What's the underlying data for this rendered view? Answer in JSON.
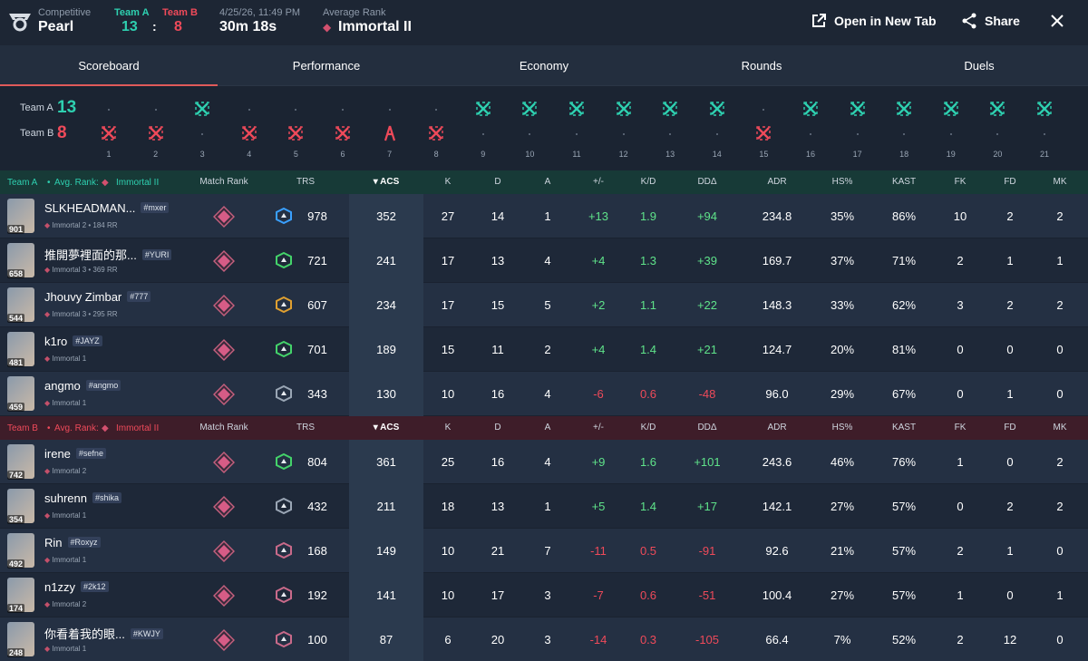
{
  "header": {
    "mode_label": "Competitive",
    "map": "Pearl",
    "team_a_label": "Team A",
    "team_b_label": "Team B",
    "score_a": "13",
    "score_sep": ":",
    "score_b": "8",
    "datetime": "4/25/26, 11:49 PM",
    "duration": "30m 18s",
    "avg_rank_label": "Average Rank",
    "avg_rank": "Immortal II",
    "open_tab": "Open in New Tab",
    "share": "Share"
  },
  "tabs": [
    "Scoreboard",
    "Performance",
    "Economy",
    "Rounds",
    "Duels"
  ],
  "timeline": {
    "team_a_label": "Team A",
    "team_a_score": "13",
    "team_b_label": "Team B",
    "team_b_score": "8",
    "rounds": [
      {
        "n": "1",
        "winner": "b"
      },
      {
        "n": "2",
        "winner": "b"
      },
      {
        "n": "3",
        "winner": "a"
      },
      {
        "n": "4",
        "winner": "b"
      },
      {
        "n": "5",
        "winner": "b"
      },
      {
        "n": "6",
        "winner": "b"
      },
      {
        "n": "7",
        "winner": "b-spike"
      },
      {
        "n": "8",
        "winner": "b"
      },
      {
        "n": "9",
        "winner": "a"
      },
      {
        "n": "10",
        "winner": "a"
      },
      {
        "n": "11",
        "winner": "a"
      },
      {
        "n": "12",
        "winner": "a"
      },
      {
        "n": "13",
        "winner": "a"
      },
      {
        "n": "14",
        "winner": "a"
      },
      {
        "n": "15",
        "winner": "b"
      },
      {
        "n": "16",
        "winner": "a"
      },
      {
        "n": "17",
        "winner": "a"
      },
      {
        "n": "18",
        "winner": "a"
      },
      {
        "n": "19",
        "winner": "a"
      },
      {
        "n": "20",
        "winner": "a"
      },
      {
        "n": "21",
        "winner": "a"
      }
    ]
  },
  "columns": [
    "Match Rank",
    "TRS",
    "ACS",
    "K",
    "D",
    "A",
    "+/-",
    "K/D",
    "DDΔ",
    "ADR",
    "HS%",
    "KAST",
    "FK",
    "FD",
    "MK"
  ],
  "team_a": {
    "label": "Team A",
    "avg_label": "Avg. Rank:",
    "avg_rank": "Immortal II",
    "players": [
      {
        "name": "SLKHEADMAN...",
        "tag": "#mxer",
        "rank": "Immortal 2 • 184 RR",
        "lvl": "901",
        "trs": "978",
        "acs": "352",
        "k": "27",
        "d": "14",
        "a": "1",
        "pm": "+13",
        "kd": "1.9",
        "dd": "+94",
        "adr": "234.8",
        "hs": "35%",
        "kast": "86%",
        "fk": "10",
        "fd": "2",
        "mk": "2",
        "sign": "pos",
        "trs_color": "#3aa0ff"
      },
      {
        "name": "推開夢裡面的那...",
        "tag": "#YURI",
        "rank": "Immortal 3 • 369 RR",
        "lvl": "658",
        "trs": "721",
        "acs": "241",
        "k": "17",
        "d": "13",
        "a": "4",
        "pm": "+4",
        "kd": "1.3",
        "dd": "+39",
        "adr": "169.7",
        "hs": "37%",
        "kast": "71%",
        "fk": "2",
        "fd": "1",
        "mk": "1",
        "sign": "pos",
        "trs_color": "#44d36a"
      },
      {
        "name": "Jhouvy Zimbar",
        "tag": "#777",
        "rank": "Immortal 3 • 295 RR",
        "lvl": "544",
        "trs": "607",
        "acs": "234",
        "k": "17",
        "d": "15",
        "a": "5",
        "pm": "+2",
        "kd": "1.1",
        "dd": "+22",
        "adr": "148.3",
        "hs": "33%",
        "kast": "62%",
        "fk": "3",
        "fd": "2",
        "mk": "2",
        "sign": "pos",
        "trs_color": "#e0a030"
      },
      {
        "name": "k1ro",
        "tag": "#JAYZ",
        "rank": "Immortal 1",
        "lvl": "481",
        "trs": "701",
        "acs": "189",
        "k": "15",
        "d": "11",
        "a": "2",
        "pm": "+4",
        "kd": "1.4",
        "dd": "+21",
        "adr": "124.7",
        "hs": "20%",
        "kast": "81%",
        "fk": "0",
        "fd": "0",
        "mk": "0",
        "sign": "pos",
        "trs_color": "#44d36a"
      },
      {
        "name": "angmo",
        "tag": "#angmo",
        "rank": "Immortal 1",
        "lvl": "459",
        "trs": "343",
        "acs": "130",
        "k": "10",
        "d": "16",
        "a": "4",
        "pm": "-6",
        "kd": "0.6",
        "dd": "-48",
        "adr": "96.0",
        "hs": "29%",
        "kast": "67%",
        "fk": "0",
        "fd": "1",
        "mk": "0",
        "sign": "neg",
        "trs_color": "#9aa6b5"
      }
    ]
  },
  "team_b": {
    "label": "Team B",
    "avg_label": "Avg. Rank:",
    "avg_rank": "Immortal II",
    "players": [
      {
        "name": "irene",
        "tag": "#sefne",
        "rank": "Immortal 2",
        "lvl": "742",
        "trs": "804",
        "acs": "361",
        "k": "25",
        "d": "16",
        "a": "4",
        "pm": "+9",
        "kd": "1.6",
        "dd": "+101",
        "adr": "243.6",
        "hs": "46%",
        "kast": "76%",
        "fk": "1",
        "fd": "0",
        "mk": "2",
        "sign": "pos",
        "trs_color": "#44d36a"
      },
      {
        "name": "suhrenn",
        "tag": "#shika",
        "rank": "Immortal 1",
        "lvl": "354",
        "trs": "432",
        "acs": "211",
        "k": "18",
        "d": "13",
        "a": "1",
        "pm": "+5",
        "kd": "1.4",
        "dd": "+17",
        "adr": "142.1",
        "hs": "27%",
        "kast": "57%",
        "fk": "0",
        "fd": "2",
        "mk": "2",
        "sign": "pos",
        "trs_color": "#9aa6b5"
      },
      {
        "name": "Rin",
        "tag": "#Roxyz",
        "rank": "Immortal 1",
        "lvl": "492",
        "trs": "168",
        "acs": "149",
        "k": "10",
        "d": "21",
        "a": "7",
        "pm": "-11",
        "kd": "0.5",
        "dd": "-91",
        "adr": "92.6",
        "hs": "21%",
        "kast": "57%",
        "fk": "2",
        "fd": "1",
        "mk": "0",
        "sign": "neg",
        "trs_color": "#c96a8a"
      },
      {
        "name": "n1zzy",
        "tag": "#2k12",
        "rank": "Immortal 2",
        "lvl": "174",
        "trs": "192",
        "acs": "141",
        "k": "10",
        "d": "17",
        "a": "3",
        "pm": "-7",
        "kd": "0.6",
        "dd": "-51",
        "adr": "100.4",
        "hs": "27%",
        "kast": "57%",
        "fk": "1",
        "fd": "0",
        "mk": "1",
        "sign": "neg",
        "trs_color": "#c96a8a"
      },
      {
        "name": "你看着我的眼...",
        "tag": "#KWJY",
        "rank": "Immortal 1",
        "lvl": "248",
        "trs": "100",
        "acs": "87",
        "k": "6",
        "d": "20",
        "a": "3",
        "pm": "-14",
        "kd": "0.3",
        "dd": "-105",
        "adr": "66.4",
        "hs": "7%",
        "kast": "52%",
        "fk": "2",
        "fd": "12",
        "mk": "0",
        "sign": "neg",
        "trs_color": "#c96a8a"
      }
    ]
  },
  "colors": {
    "team_a": "#2ed0b0",
    "team_b": "#ef4a5a",
    "accent": "#e05a5a"
  }
}
